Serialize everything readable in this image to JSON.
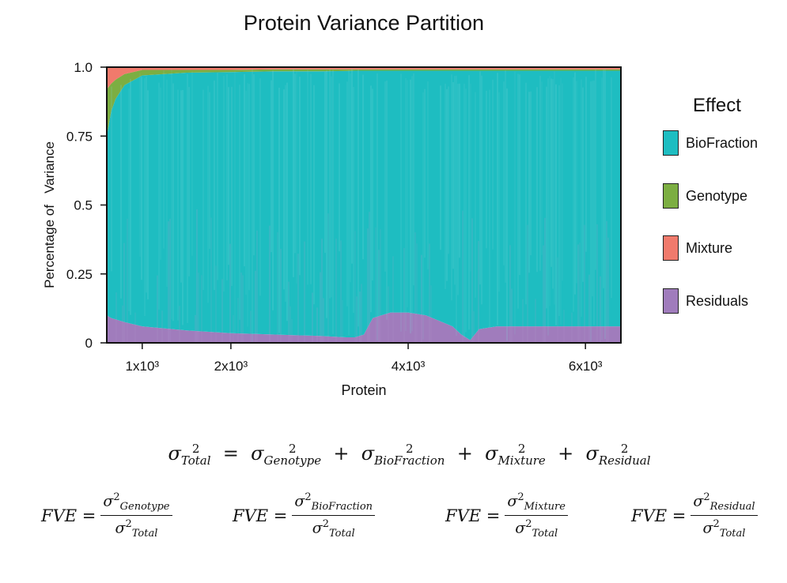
{
  "chart_data": {
    "type": "area",
    "title": "Protein Variance Partition",
    "xlabel": "Protein",
    "ylabel": "Percentage of   Variance",
    "xlim": [
      600,
      6400
    ],
    "ylim": [
      0,
      1.0
    ],
    "x_ticks": [
      1000,
      2000,
      4000,
      6000
    ],
    "x_tick_labels": [
      "1x10³",
      "2x10³",
      "4x10³",
      "6x10³"
    ],
    "y_ticks": [
      0,
      0.25,
      0.5,
      0.75,
      1.0
    ],
    "y_tick_labels": [
      "0",
      "0.25",
      "0.5",
      "0.75",
      "1.0"
    ],
    "stack_order": [
      "Residuals",
      "BioFraction",
      "Genotype",
      "Mixture"
    ],
    "x": [
      600,
      650,
      700,
      800,
      1000,
      1500,
      2000,
      2500,
      3000,
      3300,
      3400,
      3500,
      3600,
      3800,
      4000,
      4200,
      4500,
      4600,
      4700,
      4800,
      5000,
      5500,
      6000,
      6400
    ],
    "series": [
      {
        "name": "Residuals",
        "color": "#A07CBC",
        "values": [
          0.1,
          0.09,
          0.085,
          0.075,
          0.06,
          0.045,
          0.035,
          0.03,
          0.025,
          0.02,
          0.02,
          0.03,
          0.09,
          0.11,
          0.11,
          0.1,
          0.06,
          0.03,
          0.01,
          0.05,
          0.06,
          0.06,
          0.06,
          0.06
        ]
      },
      {
        "name": "BioFraction",
        "color": "#1EBDC1",
        "values": [
          0.65,
          0.75,
          0.8,
          0.86,
          0.91,
          0.935,
          0.947,
          0.955,
          0.96,
          0.966,
          0.967,
          0.957,
          0.897,
          0.877,
          0.877,
          0.887,
          0.927,
          0.957,
          0.977,
          0.937,
          0.927,
          0.927,
          0.927,
          0.927
        ]
      },
      {
        "name": "Genotype",
        "color": "#7CAE42",
        "values": [
          0.17,
          0.1,
          0.07,
          0.04,
          0.02,
          0.01,
          0.008,
          0.007,
          0.007,
          0.006,
          0.005,
          0.005,
          0.005,
          0.005,
          0.005,
          0.005,
          0.005,
          0.005,
          0.005,
          0.005,
          0.005,
          0.005,
          0.005,
          0.005
        ]
      },
      {
        "name": "Mixture",
        "color": "#F07A6C",
        "values": [
          0.08,
          0.06,
          0.045,
          0.025,
          0.01,
          0.01,
          0.01,
          0.008,
          0.008,
          0.008,
          0.008,
          0.008,
          0.008,
          0.008,
          0.008,
          0.008,
          0.008,
          0.008,
          0.008,
          0.008,
          0.008,
          0.008,
          0.008,
          0.008
        ]
      }
    ],
    "grid": false,
    "legend": {
      "title": "Effect",
      "position": "right",
      "entries": [
        {
          "label": "BioFraction",
          "color": "#1EBDC1"
        },
        {
          "label": "Genotype",
          "color": "#7CAE42"
        },
        {
          "label": "Mixture",
          "color": "#F07A6C"
        },
        {
          "label": "Residuals",
          "color": "#A07CBC"
        }
      ]
    }
  },
  "equations": {
    "total": {
      "lhs": "Total",
      "terms": [
        "Genotype",
        "BioFraction",
        "Mixture",
        "Residual"
      ]
    },
    "fve_label": "FVE",
    "fve_denominator": "Total",
    "fve_numerators": [
      "Genotype",
      "BioFraction",
      "Mixture",
      "Residual"
    ]
  }
}
